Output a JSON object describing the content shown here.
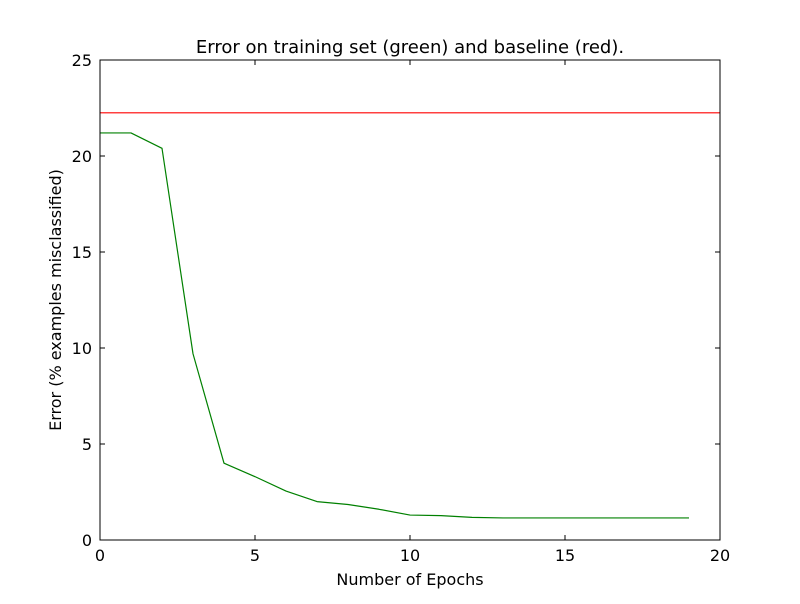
{
  "chart_data": {
    "type": "line",
    "title": "Error on training set (green) and baseline (red).",
    "xlabel": "Number of Epochs",
    "ylabel": "Error (% examples misclassified)",
    "xlim": [
      0,
      20
    ],
    "ylim": [
      0,
      25
    ],
    "x_ticks": [
      0,
      5,
      10,
      15,
      20
    ],
    "y_ticks": [
      0,
      5,
      10,
      15,
      20,
      25
    ],
    "grid": false,
    "legend": "none",
    "series": [
      {
        "color": "#008000",
        "x": [
          0,
          1,
          2,
          3,
          4,
          5,
          6,
          7,
          8,
          9,
          10,
          11,
          12,
          13,
          14,
          15,
          16,
          17,
          18,
          19
        ],
        "values": [
          21.2,
          21.2,
          20.4,
          9.7,
          4.0,
          3.3,
          2.55,
          2.0,
          1.85,
          1.6,
          1.3,
          1.27,
          1.18,
          1.15,
          1.15,
          1.15,
          1.15,
          1.15,
          1.15,
          1.15
        ]
      },
      {
        "color": "#ff0000",
        "x": [
          0,
          20
        ],
        "values": [
          22.25,
          22.25
        ]
      }
    ]
  }
}
